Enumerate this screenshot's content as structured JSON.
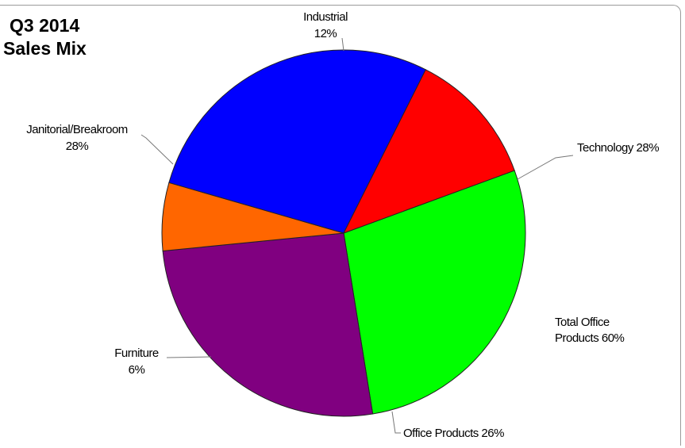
{
  "chart_data": {
    "type": "pie",
    "title_line1": "Q3 2014",
    "title_line2": "Sales Mix",
    "slices": [
      {
        "name": "Technology",
        "value": 28,
        "label_value": "28%",
        "color": "#00ff00"
      },
      {
        "name": "Office Products",
        "value": 26,
        "label_value": "26%",
        "color": "#800080"
      },
      {
        "name": "Furniture",
        "value": 6,
        "label_value": "6%",
        "color": "#ff6600"
      },
      {
        "name": "Janitorial/Breakroom",
        "value": 28,
        "label_value": "28%",
        "color": "#0000ff"
      },
      {
        "name": "Industrial",
        "value": 12,
        "label_value": "12%",
        "color": "#ff0000"
      }
    ],
    "annotation_line1": "Total Office",
    "annotation_line2": "Products 60%",
    "start_angle_deg": 70,
    "direction": "clockwise"
  }
}
